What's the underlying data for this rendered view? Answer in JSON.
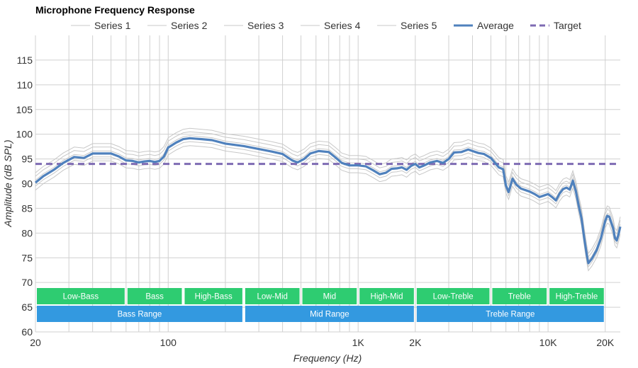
{
  "chart_data": {
    "type": "line",
    "title": "Microphone Frequency Response",
    "xlabel": "Frequency (Hz)",
    "ylabel": "Amplitude (dB SPL)",
    "x_scale": "log",
    "xlim": [
      20,
      24000
    ],
    "ylim": [
      60,
      120
    ],
    "x_ticks": [
      {
        "value": 20,
        "label": "20"
      },
      {
        "value": 100,
        "label": "100"
      },
      {
        "value": 1000,
        "label": "1K"
      },
      {
        "value": 2000,
        "label": "2K"
      },
      {
        "value": 10000,
        "label": "10K"
      },
      {
        "value": 20000,
        "label": "20K"
      }
    ],
    "y_ticks": [
      60,
      65,
      70,
      75,
      80,
      85,
      90,
      95,
      100,
      105,
      110,
      115
    ],
    "grid": true,
    "legend_position": "top",
    "legend": [
      "Series 1",
      "Series 2",
      "Series 3",
      "Series 4",
      "Series 5",
      "Average",
      "Target"
    ],
    "average": {
      "name": "Average",
      "color": "#4f81bd",
      "points": [
        [
          20,
          90.2
        ],
        [
          22,
          91.5
        ],
        [
          25,
          92.8
        ],
        [
          28,
          94.2
        ],
        [
          32,
          95.4
        ],
        [
          36,
          95.2
        ],
        [
          40,
          96.1
        ],
        [
          45,
          96.1
        ],
        [
          50,
          96.1
        ],
        [
          55,
          95.5
        ],
        [
          60,
          94.7
        ],
        [
          65,
          94.6
        ],
        [
          70,
          94.3
        ],
        [
          75,
          94.5
        ],
        [
          80,
          94.6
        ],
        [
          85,
          94.4
        ],
        [
          90,
          94.6
        ],
        [
          95,
          95.5
        ],
        [
          100,
          97.3
        ],
        [
          110,
          98.3
        ],
        [
          120,
          99.0
        ],
        [
          130,
          99.2
        ],
        [
          150,
          99.0
        ],
        [
          170,
          98.8
        ],
        [
          200,
          98.1
        ],
        [
          250,
          97.6
        ],
        [
          300,
          97.0
        ],
        [
          350,
          96.5
        ],
        [
          400,
          96.0
        ],
        [
          450,
          94.7
        ],
        [
          480,
          94.3
        ],
        [
          520,
          95.0
        ],
        [
          560,
          96.1
        ],
        [
          620,
          96.6
        ],
        [
          700,
          96.4
        ],
        [
          760,
          95.3
        ],
        [
          820,
          94.2
        ],
        [
          900,
          93.7
        ],
        [
          1000,
          93.7
        ],
        [
          1100,
          93.5
        ],
        [
          1200,
          92.7
        ],
        [
          1300,
          91.9
        ],
        [
          1400,
          92.2
        ],
        [
          1500,
          93.0
        ],
        [
          1600,
          93.1
        ],
        [
          1700,
          93.3
        ],
        [
          1800,
          92.8
        ],
        [
          1900,
          93.6
        ],
        [
          2000,
          94.0
        ],
        [
          2100,
          93.3
        ],
        [
          2200,
          93.6
        ],
        [
          2400,
          94.3
        ],
        [
          2600,
          94.6
        ],
        [
          2800,
          94.2
        ],
        [
          3000,
          95.0
        ],
        [
          3200,
          96.3
        ],
        [
          3500,
          96.4
        ],
        [
          3800,
          96.9
        ],
        [
          4000,
          96.6
        ],
        [
          4300,
          96.2
        ],
        [
          4600,
          96.0
        ],
        [
          5000,
          95.2
        ],
        [
          5500,
          93.3
        ],
        [
          5800,
          92.9
        ],
        [
          6000,
          89.6
        ],
        [
          6200,
          88.3
        ],
        [
          6500,
          91.0
        ],
        [
          6800,
          89.8
        ],
        [
          7200,
          89.0
        ],
        [
          8000,
          88.4
        ],
        [
          8500,
          87.9
        ],
        [
          9000,
          87.3
        ],
        [
          9500,
          87.6
        ],
        [
          10000,
          87.9
        ],
        [
          10500,
          87.3
        ],
        [
          11000,
          86.6
        ],
        [
          11500,
          88.0
        ],
        [
          12000,
          88.9
        ],
        [
          12500,
          89.2
        ],
        [
          13000,
          88.8
        ],
        [
          13500,
          90.6
        ],
        [
          14000,
          88.5
        ],
        [
          14500,
          85.5
        ],
        [
          15000,
          83.0
        ],
        [
          15500,
          79.0
        ],
        [
          16000,
          75.5
        ],
        [
          16300,
          73.9
        ],
        [
          17000,
          74.8
        ],
        [
          18000,
          76.5
        ],
        [
          19000,
          79.0
        ],
        [
          20000,
          82.5
        ],
        [
          20500,
          83.5
        ],
        [
          21000,
          83.3
        ],
        [
          22000,
          81.0
        ],
        [
          22500,
          79.0
        ],
        [
          23000,
          78.5
        ],
        [
          23500,
          79.8
        ],
        [
          24000,
          81.3
        ]
      ]
    },
    "target": {
      "name": "Target",
      "value": 94,
      "color": "#7e6bb3"
    },
    "series_offsets": {
      "Series 1": -1.5,
      "Series 2": -0.7,
      "Series 3": 0.5,
      "Series 4": 1.3,
      "Series 5": 2.0
    },
    "bands": [
      {
        "label": "Low-Bass",
        "from": 20,
        "to": 60,
        "color": "#2ecc71"
      },
      {
        "label": "Bass",
        "from": 60,
        "to": 120,
        "color": "#2ecc71"
      },
      {
        "label": "High-Bass",
        "from": 120,
        "to": 250,
        "color": "#2ecc71"
      },
      {
        "label": "Low-Mid",
        "from": 250,
        "to": 500,
        "color": "#2ecc71"
      },
      {
        "label": "Mid",
        "from": 500,
        "to": 1000,
        "color": "#2ecc71"
      },
      {
        "label": "High-Mid",
        "from": 1000,
        "to": 2000,
        "color": "#2ecc71"
      },
      {
        "label": "Low-Treble",
        "from": 2000,
        "to": 5000,
        "color": "#2ecc71"
      },
      {
        "label": "Treble",
        "from": 5000,
        "to": 10000,
        "color": "#2ecc71"
      },
      {
        "label": "High-Treble",
        "from": 10000,
        "to": 20000,
        "color": "#2ecc71"
      }
    ],
    "ranges": [
      {
        "label": "Bass Range",
        "from": 20,
        "to": 250,
        "color": "#3399e0"
      },
      {
        "label": "Mid Range",
        "from": 250,
        "to": 2000,
        "color": "#3399e0"
      },
      {
        "label": "Treble Range",
        "from": 2000,
        "to": 20000,
        "color": "#3399e0"
      }
    ],
    "colors": {
      "individual_series": "#c8c8c8",
      "grid": "#d0d0d0"
    }
  }
}
